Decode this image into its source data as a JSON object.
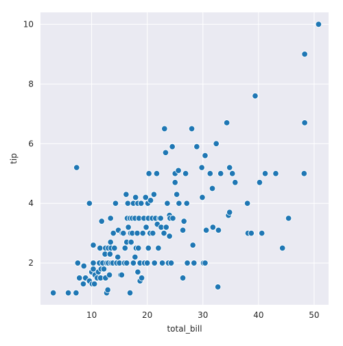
{
  "chart_data": {
    "type": "scatter",
    "title": "",
    "xlabel": "total_bill",
    "ylabel": "tip",
    "xlim": [
      0.8,
      52.6
    ],
    "ylim": [
      0.6,
      10.4
    ],
    "xticks": [
      10,
      20,
      30,
      40,
      50
    ],
    "yticks": [
      2,
      4,
      6,
      8,
      10
    ],
    "xtick_labels": [
      "10",
      "20",
      "30",
      "40",
      "50"
    ],
    "ytick_labels": [
      "2",
      "4",
      "6",
      "8",
      "10"
    ],
    "grid": true,
    "style": "seaborn-darkgrid",
    "colors": {
      "plot_background": "#eaeaf2",
      "grid": "#ffffff",
      "marker_fill": "#1f77b4",
      "marker_edge": "#ffffff"
    },
    "series": [
      {
        "points": [
          [
            3.1,
            1.0
          ],
          [
            5.8,
            1.0
          ],
          [
            7.2,
            1.0
          ],
          [
            7.3,
            5.2
          ],
          [
            7.5,
            2.0
          ],
          [
            7.8,
            1.5
          ],
          [
            8.5,
            1.3
          ],
          [
            8.9,
            1.5
          ],
          [
            8.6,
            1.9
          ],
          [
            9.6,
            4.0
          ],
          [
            9.6,
            1.4
          ],
          [
            10.0,
            1.7
          ],
          [
            10.1,
            1.3
          ],
          [
            10.3,
            1.8
          ],
          [
            10.3,
            2.0
          ],
          [
            10.5,
            1.3
          ],
          [
            10.3,
            2.6
          ],
          [
            10.6,
            1.6
          ],
          [
            11.0,
            1.5
          ],
          [
            11.2,
            1.7
          ],
          [
            11.4,
            2.0
          ],
          [
            11.6,
            1.5
          ],
          [
            11.5,
            2.5
          ],
          [
            11.7,
            1.8
          ],
          [
            11.8,
            3.4
          ],
          [
            12.0,
            2.0
          ],
          [
            12.2,
            1.8
          ],
          [
            12.4,
            2.3
          ],
          [
            12.5,
            1.5
          ],
          [
            12.5,
            2.5
          ],
          [
            12.7,
            1.0
          ],
          [
            12.9,
            1.1
          ],
          [
            12.7,
            2.0
          ],
          [
            13.0,
            2.0
          ],
          [
            13.0,
            2.5
          ],
          [
            13.2,
            1.6
          ],
          [
            13.3,
            2.3
          ],
          [
            13.4,
            2.7
          ],
          [
            13.4,
            3.5
          ],
          [
            13.5,
            2.0
          ],
          [
            13.5,
            2.5
          ],
          [
            13.8,
            2.0
          ],
          [
            13.9,
            3.0
          ],
          [
            14.1,
            2.5
          ],
          [
            14.3,
            4.0
          ],
          [
            14.5,
            2.0
          ],
          [
            14.7,
            2.2
          ],
          [
            14.8,
            3.1
          ],
          [
            15.0,
            2.0
          ],
          [
            15.2,
            1.6
          ],
          [
            15.4,
            1.6
          ],
          [
            15.5,
            3.0
          ],
          [
            15.7,
            3.0
          ],
          [
            15.9,
            2.0
          ],
          [
            16.0,
            2.5
          ],
          [
            16.2,
            4.3
          ],
          [
            16.3,
            2.0
          ],
          [
            16.3,
            2.7
          ],
          [
            16.4,
            3.5
          ],
          [
            16.5,
            4.0
          ],
          [
            16.6,
            3.2
          ],
          [
            16.9,
            3.5
          ],
          [
            16.9,
            1.0
          ],
          [
            17.0,
            3.0
          ],
          [
            17.1,
            2.7
          ],
          [
            17.3,
            3.5
          ],
          [
            17.3,
            3.0
          ],
          [
            17.5,
            2.0
          ],
          [
            17.5,
            4.0
          ],
          [
            17.8,
            2.2
          ],
          [
            17.8,
            3.5
          ],
          [
            17.9,
            4.2
          ],
          [
            18.0,
            2.5
          ],
          [
            18.2,
            3.0
          ],
          [
            18.3,
            4.0
          ],
          [
            18.4,
            2.5
          ],
          [
            18.3,
            1.7
          ],
          [
            18.5,
            3.5
          ],
          [
            18.7,
            1.4
          ],
          [
            18.7,
            2.0
          ],
          [
            18.9,
            4.0
          ],
          [
            19.0,
            1.5
          ],
          [
            19.2,
            3.0
          ],
          [
            19.4,
            3.5
          ],
          [
            19.5,
            2.0
          ],
          [
            19.7,
            4.2
          ],
          [
            19.8,
            3.2
          ],
          [
            20.0,
            2.0
          ],
          [
            20.1,
            4.0
          ],
          [
            20.2,
            3.5
          ],
          [
            20.2,
            2.5
          ],
          [
            20.3,
            5.0
          ],
          [
            20.5,
            3.0
          ],
          [
            20.6,
            4.1
          ],
          [
            20.9,
            3.5
          ],
          [
            21.0,
            3.0
          ],
          [
            21.2,
            4.3
          ],
          [
            21.3,
            2.0
          ],
          [
            21.5,
            3.5
          ],
          [
            21.7,
            5.0
          ],
          [
            21.8,
            3.3
          ],
          [
            22.0,
            2.5
          ],
          [
            22.2,
            3.5
          ],
          [
            22.4,
            3.5
          ],
          [
            22.5,
            3.2
          ],
          [
            22.7,
            2.0
          ],
          [
            23.0,
            3.0
          ],
          [
            23.1,
            6.5
          ],
          [
            23.3,
            5.7
          ],
          [
            23.4,
            3.2
          ],
          [
            23.6,
            4.0
          ],
          [
            23.8,
            2.0
          ],
          [
            24.0,
            3.6
          ],
          [
            24.0,
            2.9
          ],
          [
            24.1,
            3.5
          ],
          [
            24.3,
            2.0
          ],
          [
            24.5,
            5.9
          ],
          [
            24.6,
            3.5
          ],
          [
            25.0,
            4.7
          ],
          [
            25.0,
            5.0
          ],
          [
            25.3,
            4.3
          ],
          [
            25.6,
            5.1
          ],
          [
            25.7,
            4.0
          ],
          [
            26.4,
            3.1
          ],
          [
            26.4,
            1.5
          ],
          [
            26.6,
            3.4
          ],
          [
            26.9,
            5.0
          ],
          [
            27.1,
            4.0
          ],
          [
            27.2,
            2.0
          ],
          [
            28.0,
            6.5
          ],
          [
            28.2,
            2.6
          ],
          [
            28.4,
            2.0
          ],
          [
            28.9,
            5.9
          ],
          [
            29.8,
            5.2
          ],
          [
            29.9,
            4.2
          ],
          [
            30.1,
            2.0
          ],
          [
            30.4,
            5.6
          ],
          [
            30.4,
            2.0
          ],
          [
            30.6,
            3.1
          ],
          [
            31.3,
            5.0
          ],
          [
            31.7,
            4.5
          ],
          [
            31.8,
            3.2
          ],
          [
            32.4,
            6.0
          ],
          [
            32.7,
            1.2
          ],
          [
            32.8,
            3.1
          ],
          [
            33.2,
            5.0
          ],
          [
            34.3,
            6.7
          ],
          [
            34.6,
            3.6
          ],
          [
            34.8,
            3.7
          ],
          [
            34.8,
            5.2
          ],
          [
            35.3,
            5.0
          ],
          [
            35.8,
            4.7
          ],
          [
            38.0,
            4.0
          ],
          [
            38.1,
            3.0
          ],
          [
            38.7,
            3.0
          ],
          [
            39.4,
            7.6
          ],
          [
            40.2,
            4.7
          ],
          [
            40.6,
            3.0
          ],
          [
            41.2,
            5.0
          ],
          [
            43.1,
            5.0
          ],
          [
            44.3,
            2.5
          ],
          [
            45.4,
            3.5
          ],
          [
            48.2,
            5.0
          ],
          [
            48.3,
            6.7
          ],
          [
            48.3,
            9.0
          ],
          [
            50.8,
            10.0
          ]
        ]
      }
    ]
  }
}
